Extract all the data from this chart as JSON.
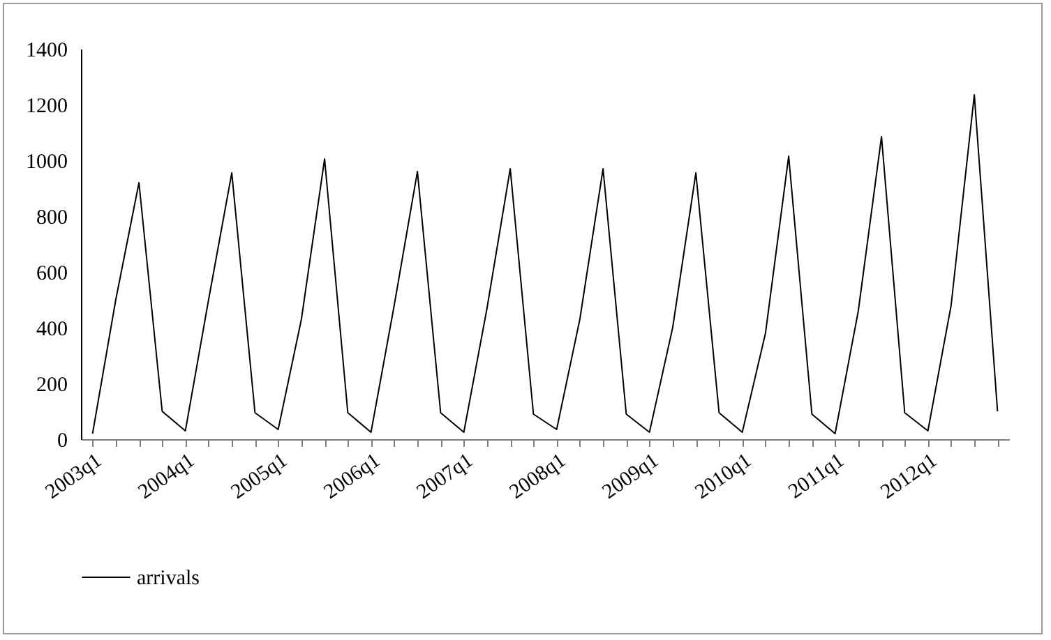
{
  "chart_data": {
    "type": "line",
    "categories": [
      "2003q1",
      null,
      null,
      null,
      "2004q1",
      null,
      null,
      null,
      "2005q1",
      null,
      null,
      null,
      "2006q1",
      null,
      null,
      null,
      "2007q1",
      null,
      null,
      null,
      "2008q1",
      null,
      null,
      null,
      "2009q1",
      null,
      null,
      null,
      "2010q1",
      null,
      null,
      null,
      "2011q1",
      null,
      null,
      null,
      "2012q1",
      null,
      null,
      null
    ],
    "series": [
      {
        "name": "arrivals",
        "color": "#000000",
        "values": [
          20,
          500,
          920,
          100,
          30,
          500,
          955,
          95,
          35,
          430,
          1005,
          95,
          25,
          480,
          960,
          95,
          25,
          470,
          970,
          90,
          35,
          430,
          970,
          90,
          25,
          400,
          955,
          95,
          25,
          380,
          1015,
          90,
          20,
          460,
          1085,
          95,
          30,
          480,
          1235,
          100
        ]
      }
    ],
    "ylim": [
      0,
      1400
    ],
    "yticks": [
      0,
      200,
      400,
      600,
      800,
      1000,
      1200,
      1400
    ],
    "grid": false,
    "legend": "bottom",
    "marker": "none",
    "line_style": "solid"
  }
}
